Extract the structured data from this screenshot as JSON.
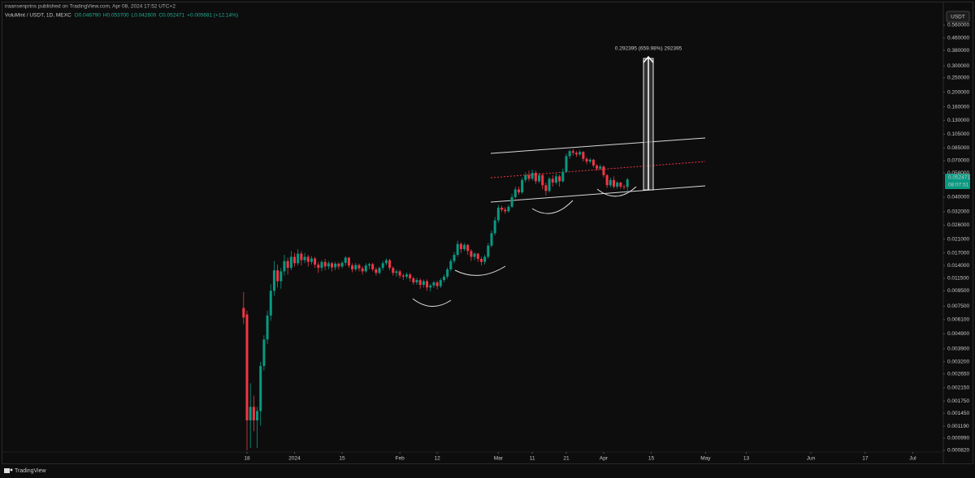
{
  "header": {
    "publisher": "iraansenprins published on TradingView.com, Apr 08, 2024 17:52 UTC+2",
    "symbol": "VoluMint / USDT, 1D, MEXC",
    "ohlc": [
      "O0.046790",
      "H0.053700",
      "L0.042600",
      "C0.052471",
      "+0.005681 (+12.14%)"
    ]
  },
  "toolbar": {
    "currency": "USDT"
  },
  "footer": {
    "brand": "TradingView"
  },
  "chart_data": {
    "type": "candlestick",
    "log_scale": true,
    "up_color": "#089981",
    "down_color": "#f23645",
    "x": [
      "2023-12-17",
      "2023-12-18",
      "2023-12-19",
      "2023-12-20",
      "2023-12-21",
      "2023-12-22",
      "2023-12-23",
      "2023-12-24",
      "2023-12-25",
      "2023-12-26",
      "2023-12-27",
      "2023-12-28",
      "2023-12-29",
      "2023-12-30",
      "2023-12-31",
      "2024-01-01",
      "2024-01-02",
      "2024-01-03",
      "2024-01-04",
      "2024-01-05",
      "2024-01-06",
      "2024-01-07",
      "2024-01-08",
      "2024-01-09",
      "2024-01-10",
      "2024-01-11",
      "2024-01-12",
      "2024-01-13",
      "2024-01-14",
      "2024-01-15",
      "2024-01-16",
      "2024-01-17",
      "2024-01-18",
      "2024-01-19",
      "2024-01-20",
      "2024-01-21",
      "2024-01-22",
      "2024-01-23",
      "2024-01-24",
      "2024-01-25",
      "2024-01-26",
      "2024-01-27",
      "2024-01-28",
      "2024-01-29",
      "2024-01-30",
      "2024-01-31",
      "2024-02-01",
      "2024-02-02",
      "2024-02-03",
      "2024-02-04",
      "2024-02-05",
      "2024-02-06",
      "2024-02-07",
      "2024-02-08",
      "2024-02-09",
      "2024-02-10",
      "2024-02-11",
      "2024-02-12",
      "2024-02-13",
      "2024-02-14",
      "2024-02-15",
      "2024-02-16",
      "2024-02-17",
      "2024-02-18",
      "2024-02-19",
      "2024-02-20",
      "2024-02-21",
      "2024-02-22",
      "2024-02-23",
      "2024-02-24",
      "2024-02-25",
      "2024-02-26",
      "2024-02-27",
      "2024-02-28",
      "2024-02-29",
      "2024-03-01",
      "2024-03-02",
      "2024-03-03",
      "2024-03-04",
      "2024-03-05",
      "2024-03-06",
      "2024-03-07",
      "2024-03-08",
      "2024-03-09",
      "2024-03-10",
      "2024-03-11",
      "2024-03-12",
      "2024-03-13",
      "2024-03-14",
      "2024-03-15",
      "2024-03-16",
      "2024-03-17",
      "2024-03-18",
      "2024-03-19",
      "2024-03-20",
      "2024-03-21",
      "2024-03-22",
      "2024-03-23",
      "2024-03-24",
      "2024-03-25",
      "2024-03-26",
      "2024-03-27",
      "2024-03-28",
      "2024-03-29",
      "2024-03-30",
      "2024-03-31",
      "2024-04-01",
      "2024-04-02",
      "2024-04-03",
      "2024-04-04",
      "2024-04-05",
      "2024-04-06",
      "2024-04-07",
      "2024-04-08"
    ],
    "open": [
      0.0073,
      0.0066,
      0.0013,
      0.0016,
      0.0013,
      0.0015,
      0.003,
      0.0045,
      0.0065,
      0.0095,
      0.013,
      0.011,
      0.0128,
      0.015,
      0.0135,
      0.016,
      0.0145,
      0.0168,
      0.0152,
      0.016,
      0.0148,
      0.0156,
      0.0142,
      0.0135,
      0.0148,
      0.0138,
      0.0145,
      0.0136,
      0.0144,
      0.0138,
      0.0146,
      0.0158,
      0.014,
      0.0132,
      0.0141,
      0.0134,
      0.0128,
      0.014,
      0.0143,
      0.0132,
      0.0125,
      0.0135,
      0.0145,
      0.0152,
      0.0135,
      0.0125,
      0.0128,
      0.012,
      0.0118,
      0.0122,
      0.0115,
      0.0108,
      0.0112,
      0.0104,
      0.011,
      0.01,
      0.0103,
      0.0108,
      0.0102,
      0.0112,
      0.0118,
      0.0132,
      0.015,
      0.0165,
      0.0195,
      0.018,
      0.0192,
      0.0175,
      0.016,
      0.0168,
      0.0155,
      0.0148,
      0.016,
      0.019,
      0.023,
      0.028,
      0.034,
      0.033,
      0.0322,
      0.0345,
      0.04,
      0.045,
      0.043,
      0.052,
      0.056,
      0.053,
      0.058,
      0.051,
      0.056,
      0.048,
      0.044,
      0.053,
      0.05,
      0.055,
      0.051,
      0.059,
      0.075,
      0.081,
      0.079,
      0.077,
      0.08,
      0.072,
      0.069,
      0.071,
      0.065,
      0.062,
      0.064,
      0.056,
      0.048,
      0.052,
      0.047,
      0.05,
      0.047,
      0.04679
    ],
    "high": [
      0.0093,
      0.007,
      0.0023,
      0.0019,
      0.0016,
      0.0032,
      0.0048,
      0.007,
      0.0105,
      0.015,
      0.0142,
      0.0135,
      0.0165,
      0.0158,
      0.0175,
      0.017,
      0.018,
      0.0175,
      0.017,
      0.0165,
      0.0162,
      0.016,
      0.0148,
      0.0152,
      0.0155,
      0.015,
      0.0148,
      0.0148,
      0.0147,
      0.015,
      0.0162,
      0.016,
      0.0145,
      0.0146,
      0.0144,
      0.0138,
      0.0145,
      0.0146,
      0.0146,
      0.0136,
      0.0138,
      0.015,
      0.0156,
      0.0155,
      0.0138,
      0.0132,
      0.0131,
      0.0124,
      0.0126,
      0.0125,
      0.0118,
      0.0116,
      0.0115,
      0.0113,
      0.0113,
      0.0106,
      0.0111,
      0.0111,
      0.0115,
      0.0122,
      0.0136,
      0.0155,
      0.0172,
      0.0205,
      0.02,
      0.0198,
      0.0195,
      0.018,
      0.0172,
      0.017,
      0.016,
      0.0165,
      0.0198,
      0.024,
      0.0295,
      0.0355,
      0.035,
      0.0342,
      0.0355,
      0.042,
      0.047,
      0.047,
      0.054,
      0.0585,
      0.06,
      0.061,
      0.06,
      0.058,
      0.0575,
      0.05,
      0.0545,
      0.056,
      0.0575,
      0.0565,
      0.062,
      0.078,
      0.083,
      0.084,
      0.081,
      0.082,
      0.081,
      0.074,
      0.073,
      0.072,
      0.0665,
      0.066,
      0.065,
      0.057,
      0.054,
      0.055,
      0.051,
      0.0505,
      0.0485,
      0.0537
    ],
    "low": [
      0.0057,
      0.00082,
      0.00085,
      0.0011,
      0.00085,
      0.0012,
      0.0028,
      0.0042,
      0.006,
      0.0088,
      0.01,
      0.0098,
      0.012,
      0.0122,
      0.013,
      0.0138,
      0.014,
      0.014,
      0.0145,
      0.0138,
      0.0142,
      0.0135,
      0.0125,
      0.0128,
      0.013,
      0.0132,
      0.0128,
      0.013,
      0.0132,
      0.0134,
      0.014,
      0.0135,
      0.0126,
      0.0128,
      0.0128,
      0.0122,
      0.0125,
      0.0132,
      0.0128,
      0.012,
      0.0122,
      0.013,
      0.014,
      0.013,
      0.012,
      0.0118,
      0.0115,
      0.0112,
      0.0114,
      0.011,
      0.0104,
      0.0104,
      0.0098,
      0.01,
      0.0095,
      0.0094,
      0.0099,
      0.0097,
      0.0099,
      0.0108,
      0.0114,
      0.0128,
      0.0145,
      0.016,
      0.017,
      0.0175,
      0.0165,
      0.015,
      0.0152,
      0.0148,
      0.014,
      0.0142,
      0.0155,
      0.0185,
      0.0222,
      0.027,
      0.0318,
      0.031,
      0.0315,
      0.0338,
      0.039,
      0.0415,
      0.042,
      0.05,
      0.051,
      0.0515,
      0.049,
      0.0495,
      0.045,
      0.041,
      0.043,
      0.047,
      0.0485,
      0.047,
      0.05,
      0.058,
      0.072,
      0.076,
      0.074,
      0.075,
      0.069,
      0.066,
      0.067,
      0.063,
      0.06,
      0.0605,
      0.054,
      0.046,
      0.0465,
      0.0455,
      0.0455,
      0.0455,
      0.045,
      0.0426
    ],
    "close": [
      0.0063,
      0.0013,
      0.0016,
      0.0013,
      0.0015,
      0.003,
      0.0045,
      0.0065,
      0.0095,
      0.013,
      0.011,
      0.0128,
      0.015,
      0.0135,
      0.016,
      0.0145,
      0.0168,
      0.0152,
      0.016,
      0.0148,
      0.0156,
      0.0142,
      0.0135,
      0.0148,
      0.0138,
      0.0145,
      0.0136,
      0.0144,
      0.0138,
      0.0146,
      0.0158,
      0.014,
      0.0132,
      0.0141,
      0.0134,
      0.0128,
      0.014,
      0.0143,
      0.0132,
      0.0125,
      0.0135,
      0.0145,
      0.0152,
      0.0135,
      0.0125,
      0.0128,
      0.012,
      0.0118,
      0.0122,
      0.0115,
      0.0108,
      0.0112,
      0.0104,
      0.011,
      0.01,
      0.0103,
      0.0108,
      0.0102,
      0.0112,
      0.0118,
      0.0132,
      0.015,
      0.0165,
      0.0195,
      0.018,
      0.0192,
      0.0175,
      0.016,
      0.0168,
      0.0155,
      0.0148,
      0.016,
      0.019,
      0.023,
      0.028,
      0.034,
      0.033,
      0.0322,
      0.0345,
      0.04,
      0.045,
      0.043,
      0.052,
      0.056,
      0.053,
      0.058,
      0.051,
      0.056,
      0.048,
      0.044,
      0.053,
      0.05,
      0.055,
      0.051,
      0.059,
      0.075,
      0.081,
      0.079,
      0.077,
      0.08,
      0.072,
      0.069,
      0.071,
      0.065,
      0.062,
      0.064,
      0.056,
      0.048,
      0.052,
      0.047,
      0.05,
      0.047,
      0.0468,
      0.052471
    ],
    "xlim": [
      "2023-10-07",
      "2024-07-10"
    ],
    "xticks": [
      {
        "value": "2023-12-18",
        "label": "18"
      },
      {
        "value": "2024-01-01",
        "label": "2024"
      },
      {
        "value": "2024-01-15",
        "label": "15"
      },
      {
        "value": "2024-02-01",
        "label": "Feb"
      },
      {
        "value": "2024-02-12",
        "label": "12"
      },
      {
        "value": "2024-03-01",
        "label": "Mar"
      },
      {
        "value": "2024-03-11",
        "label": "11"
      },
      {
        "value": "2024-03-21",
        "label": "21"
      },
      {
        "value": "2024-04-01",
        "label": "Apr"
      },
      {
        "value": "2024-04-15",
        "label": "15"
      },
      {
        "value": "2024-05-01",
        "label": "May"
      },
      {
        "value": "2024-05-13",
        "label": "13"
      },
      {
        "value": "2024-06-01",
        "label": "Jun"
      },
      {
        "value": "2024-06-17",
        "label": "17"
      },
      {
        "value": "2024-07-01",
        "label": "Jul"
      }
    ],
    "ylim": [
      0.000724,
      0.611
    ],
    "yticks": [
      {
        "value": 0.56,
        "label": "0.560000"
      },
      {
        "value": 0.46,
        "label": "0.460000"
      },
      {
        "value": 0.38,
        "label": "0.380000"
      },
      {
        "value": 0.3,
        "label": "0.300000"
      },
      {
        "value": 0.25,
        "label": "0.250000"
      },
      {
        "value": 0.2,
        "label": "0.200000"
      },
      {
        "value": 0.16,
        "label": "0.160000"
      },
      {
        "value": 0.13,
        "label": "0.130000"
      },
      {
        "value": 0.105,
        "label": "0.105000"
      },
      {
        "value": 0.085,
        "label": "0.085000"
      },
      {
        "value": 0.07,
        "label": "0.070000"
      },
      {
        "value": 0.058,
        "label": "0.058000"
      },
      {
        "value": 0.04,
        "label": "0.040000"
      },
      {
        "value": 0.032,
        "label": "0.032000"
      },
      {
        "value": 0.026,
        "label": "0.026000"
      },
      {
        "value": 0.021,
        "label": "0.021000"
      },
      {
        "value": 0.017,
        "label": "0.017000"
      },
      {
        "value": 0.014,
        "label": "0.014000"
      },
      {
        "value": 0.0115,
        "label": "0.011500"
      },
      {
        "value": 0.0095,
        "label": "0.009500"
      },
      {
        "value": 0.0075,
        "label": "0.007500"
      },
      {
        "value": 0.0061,
        "label": "0.006100"
      },
      {
        "value": 0.0049,
        "label": "0.004900"
      },
      {
        "value": 0.0039,
        "label": "0.003900"
      },
      {
        "value": 0.0032,
        "label": "0.003200"
      },
      {
        "value": 0.00265,
        "label": "0.002650"
      },
      {
        "value": 0.00215,
        "label": "0.002150"
      },
      {
        "value": 0.00175,
        "label": "0.001750"
      },
      {
        "value": 0.00145,
        "label": "0.001450"
      },
      {
        "value": 0.00119,
        "label": "0.001190"
      },
      {
        "value": 0.00099,
        "label": "0.000990"
      },
      {
        "value": 0.00082,
        "label": "0.000820"
      }
    ],
    "last_price_label": "0.052471",
    "countdown": "08:07:51",
    "measure_label": "0.292395 (659.98%) 292395"
  }
}
